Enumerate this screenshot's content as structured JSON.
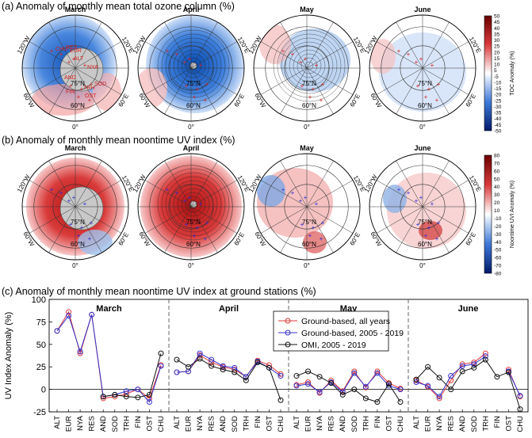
{
  "panels": {
    "a_title": "(a) Anomaly of monthly mean total ozone column (%)",
    "b_title": "(b) Anomaly of monthly mean noontime UV index (%)",
    "c_title": "(c) Anomaly of monthly mean noontime UV index at ground stations (%)"
  },
  "months": [
    "March",
    "April",
    "May",
    "June"
  ],
  "map_labels": {
    "lon_120w": "120°W",
    "lon_120e": "120°E",
    "lon_60w": "60°W",
    "lon_60e": "60°E",
    "lon_0": "0°",
    "lat_75": "75°N",
    "lat_60": "60°N"
  },
  "station_labels_map": [
    "CHU",
    "RES",
    "EUR",
    "ALT",
    "NYA",
    "SOD",
    "AND",
    "TRH",
    "FIN",
    "OST"
  ],
  "colorbar_a": {
    "label": "TOC Anomaly (%)",
    "ticks": [
      "50",
      "45",
      "40",
      "35",
      "30",
      "25",
      "20",
      "15",
      "10",
      "5",
      "-5",
      "-10",
      "-15",
      "-20",
      "-25",
      "-30",
      "-35",
      "-40",
      "-45",
      "-50"
    ]
  },
  "colorbar_b": {
    "label": "Noontime UVI Anomaly (%)",
    "ticks": [
      "80",
      "70",
      "60",
      "50",
      "40",
      "30",
      "20",
      "10",
      "-10",
      "-20",
      "-30",
      "-40",
      "-50",
      "-60",
      "-70",
      "-80"
    ]
  },
  "chart_data": {
    "type": "line",
    "title": "(c) Anomaly of monthly mean noontime UV index at ground stations (%)",
    "ylabel": "UV Index Anomaly (%)",
    "ylim": [
      -25,
      100
    ],
    "yticks": [
      -25,
      0,
      25,
      50,
      75,
      100
    ],
    "groups": [
      {
        "month": "March",
        "stations": [
          "ALT",
          "EUR",
          "NYA",
          "RES",
          "AND",
          "SOD",
          "TRH",
          "FIN",
          "OST",
          "CHU"
        ]
      },
      {
        "month": "April",
        "stations": [
          "ALT",
          "EUR",
          "NYA",
          "RES",
          "AND",
          "SOD",
          "TRH",
          "FIN",
          "OST",
          "CHU"
        ]
      },
      {
        "month": "May",
        "stations": [
          "ALT",
          "EUR",
          "NYA",
          "RES",
          "AND",
          "SOD",
          "TRH",
          "FIN",
          "OST",
          "CHU"
        ]
      },
      {
        "month": "June",
        "stations": [
          "ALT",
          "EUR",
          "NYA",
          "RES",
          "AND",
          "SOD",
          "TRH",
          "FIN",
          "OST",
          "CHU"
        ]
      }
    ],
    "series": [
      {
        "name": "Ground-based, all years",
        "color": "#e23b3b",
        "values": [
          [
            65,
            86,
            40,
            83,
            -10,
            -8,
            -5,
            0,
            -10,
            27
          ],
          [
            19,
            20,
            38,
            30,
            25,
            22,
            14,
            32,
            27,
            17
          ],
          [
            5,
            8,
            -4,
            10,
            -2,
            20,
            2,
            20,
            7,
            1
          ],
          [
            10,
            3,
            -10,
            10,
            28,
            30,
            40,
            null,
            22,
            -8
          ]
        ]
      },
      {
        "name": "Ground-based, 2005 - 2019",
        "color": "#3333cc",
        "values": [
          [
            65,
            82,
            42,
            83,
            -8,
            -6,
            -2,
            0,
            -14,
            26
          ],
          [
            19,
            20,
            40,
            33,
            26,
            24,
            14,
            31,
            24,
            15
          ],
          [
            4,
            6,
            -3,
            8,
            -3,
            18,
            3,
            18,
            4,
            0
          ],
          [
            8,
            4,
            -8,
            15,
            26,
            28,
            37,
            null,
            20,
            -7
          ]
        ]
      },
      {
        "name": "OMI, 2005 - 2019",
        "color": "#111111",
        "values": [
          [
            null,
            null,
            null,
            null,
            -8,
            -6,
            -8,
            -9,
            -6,
            40
          ],
          [
            33,
            25,
            34,
            26,
            22,
            19,
            10,
            30,
            24,
            -12
          ],
          [
            15,
            20,
            14,
            7,
            -6,
            0,
            -10,
            -14,
            6,
            -14
          ],
          [
            11,
            25,
            13,
            0,
            20,
            24,
            33,
            14,
            19,
            -22
          ]
        ]
      }
    ]
  }
}
